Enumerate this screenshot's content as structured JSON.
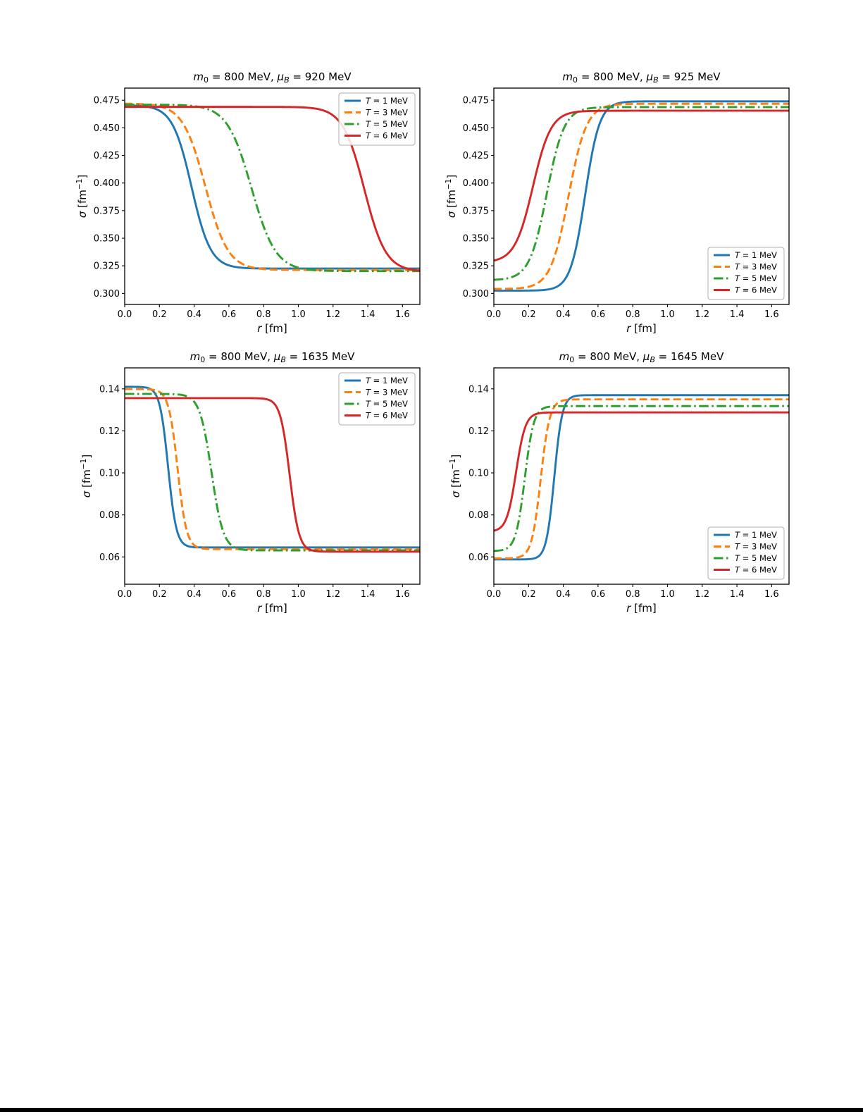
{
  "page": {
    "background_color": "#ffffff",
    "bottom_bar_color": "#000000"
  },
  "shared": {
    "x_axis_label": "r [fm]",
    "y_axis_label": "σ [fm⁻¹]",
    "legend_labels": [
      "T = 1 MeV",
      "T = 3 MeV",
      "T = 5 MeV",
      "T = 6 MeV"
    ],
    "colors": {
      "T1": "#1f77b4",
      "T3": "#ff7f0e",
      "T5": "#2ca02c",
      "T6": "#d62728"
    },
    "grid": false
  },
  "chart_data": [
    {
      "type": "line",
      "title": {
        "text": "m₀ = 800 MeV, μ_B = 920 MeV",
        "m0": "800",
        "mu_B": "920"
      },
      "xlabel": "r [fm]",
      "ylabel": "σ [fm⁻¹]",
      "xlim": [
        0.0,
        1.7
      ],
      "ylim": [
        0.29,
        0.486
      ],
      "xticks": [
        0.0,
        0.2,
        0.4,
        0.6,
        0.8,
        1.0,
        1.2,
        1.4,
        1.6
      ],
      "xtick_labels": [
        "0.0",
        "0.2",
        "0.4",
        "0.6",
        "0.8",
        "1.0",
        "1.2",
        "1.4",
        "1.6"
      ],
      "yticks": [
        0.3,
        0.325,
        0.35,
        0.375,
        0.4,
        0.425,
        0.45,
        0.475
      ],
      "ytick_labels": [
        "0.300",
        "0.325",
        "0.350",
        "0.375",
        "0.400",
        "0.425",
        "0.450",
        "0.475"
      ],
      "legend_loc": "upper-right",
      "ylabel_x": 22,
      "series": [
        {
          "name": "T = 1 MeV",
          "T": "1",
          "color": "#1f77b4",
          "linestyle": "solid",
          "profile": {
            "y_at_r0": 0.4705,
            "y_plateau": 0.3225,
            "transition_center": 0.385,
            "transition_width": 0.055
          }
        },
        {
          "name": "T = 3 MeV",
          "T": "3",
          "color": "#ff7f0e",
          "linestyle": "dashed",
          "profile": {
            "y_at_r0": 0.472,
            "y_plateau": 0.3212,
            "transition_center": 0.465,
            "transition_width": 0.065
          }
        },
        {
          "name": "T = 5 MeV",
          "T": "5",
          "color": "#2ca02c",
          "linestyle": "dashdot",
          "profile": {
            "y_at_r0": 0.471,
            "y_plateau": 0.3202,
            "transition_center": 0.73,
            "transition_width": 0.07
          }
        },
        {
          "name": "T = 6 MeV",
          "T": "6",
          "color": "#d62728",
          "linestyle": "solid",
          "profile": {
            "y_at_r0": 0.469,
            "y_plateau": 0.3198,
            "transition_center": 1.38,
            "transition_width": 0.062
          }
        }
      ]
    },
    {
      "type": "line",
      "title": {
        "text": "m₀ = 800 MeV, μ_B = 925 MeV",
        "m0": "800",
        "mu_B": "925"
      },
      "xlabel": "r [fm]",
      "ylabel": "σ [fm⁻¹]",
      "xlim": [
        0.0,
        1.7
      ],
      "ylim": [
        0.29,
        0.486
      ],
      "xticks": [
        0.0,
        0.2,
        0.4,
        0.6,
        0.8,
        1.0,
        1.2,
        1.4,
        1.6
      ],
      "xtick_labels": [
        "0.0",
        "0.2",
        "0.4",
        "0.6",
        "0.8",
        "1.0",
        "1.2",
        "1.4",
        "1.6"
      ],
      "yticks": [
        0.3,
        0.325,
        0.35,
        0.375,
        0.4,
        0.425,
        0.45,
        0.475
      ],
      "ytick_labels": [
        "0.300",
        "0.325",
        "0.350",
        "0.375",
        "0.400",
        "0.425",
        "0.450",
        "0.475"
      ],
      "legend_loc": "lower-right",
      "ylabel_x": 22,
      "series": [
        {
          "name": "T = 1 MeV",
          "T": "1",
          "color": "#1f77b4",
          "linestyle": "solid",
          "profile": {
            "y_at_r0": 0.3025,
            "y_plateau": 0.474,
            "transition_center": 0.525,
            "transition_width": 0.042
          }
        },
        {
          "name": "T = 3 MeV",
          "T": "3",
          "color": "#ff7f0e",
          "linestyle": "dashed",
          "profile": {
            "y_at_r0": 0.304,
            "y_plateau": 0.4718,
            "transition_center": 0.43,
            "transition_width": 0.052
          }
        },
        {
          "name": "T = 5 MeV",
          "T": "5",
          "color": "#2ca02c",
          "linestyle": "dashdot",
          "profile": {
            "y_at_r0": 0.312,
            "y_plateau": 0.4688,
            "transition_center": 0.305,
            "transition_width": 0.05
          }
        },
        {
          "name": "T = 6 MeV",
          "T": "6",
          "color": "#d62728",
          "linestyle": "solid",
          "profile": {
            "y_at_r0": 0.328,
            "y_plateau": 0.4655,
            "transition_center": 0.225,
            "transition_width": 0.052
          }
        }
      ]
    },
    {
      "type": "line",
      "title": {
        "text": "m₀ = 800 MeV, μ_B = 1635 MeV",
        "m0": "800",
        "mu_B": "1635"
      },
      "xlabel": "r [fm]",
      "ylabel": "σ [fm⁻¹]",
      "xlim": [
        0.0,
        1.7
      ],
      "ylim": [
        0.047,
        0.15
      ],
      "xticks": [
        0.0,
        0.2,
        0.4,
        0.6,
        0.8,
        1.0,
        1.2,
        1.4,
        1.6
      ],
      "xtick_labels": [
        "0.0",
        "0.2",
        "0.4",
        "0.6",
        "0.8",
        "1.0",
        "1.2",
        "1.4",
        "1.6"
      ],
      "yticks": [
        0.06,
        0.08,
        0.1,
        0.12,
        0.14
      ],
      "ytick_labels": [
        "0.06",
        "0.08",
        "0.10",
        "0.12",
        "0.14"
      ],
      "legend_loc": "upper-right",
      "ylabel_x": 28,
      "series": [
        {
          "name": "T = 1 MeV",
          "T": "1",
          "color": "#1f77b4",
          "linestyle": "solid",
          "profile": {
            "y_at_r0": 0.141,
            "y_plateau": 0.0645,
            "transition_center": 0.25,
            "transition_width": 0.024
          }
        },
        {
          "name": "T = 3 MeV",
          "T": "3",
          "color": "#ff7f0e",
          "linestyle": "dashed",
          "profile": {
            "y_at_r0": 0.1399,
            "y_plateau": 0.0637,
            "transition_center": 0.305,
            "transition_width": 0.026
          }
        },
        {
          "name": "T = 5 MeV",
          "T": "5",
          "color": "#2ca02c",
          "linestyle": "dashdot",
          "profile": {
            "y_at_r0": 0.1376,
            "y_plateau": 0.0631,
            "transition_center": 0.5,
            "transition_width": 0.034
          }
        },
        {
          "name": "T = 6 MeV",
          "T": "6",
          "color": "#d62728",
          "linestyle": "solid",
          "profile": {
            "y_at_r0": 0.1356,
            "y_plateau": 0.0625,
            "transition_center": 0.95,
            "transition_width": 0.027
          }
        }
      ]
    },
    {
      "type": "line",
      "title": {
        "text": "m₀ = 800 MeV, μ_B = 1645 MeV",
        "m0": "800",
        "mu_B": "1645"
      },
      "xlabel": "r [fm]",
      "ylabel": "σ [fm⁻¹]",
      "xlim": [
        0.0,
        1.7
      ],
      "ylim": [
        0.047,
        0.15
      ],
      "xticks": [
        0.0,
        0.2,
        0.4,
        0.6,
        0.8,
        1.0,
        1.2,
        1.4,
        1.6
      ],
      "xtick_labels": [
        "0.0",
        "0.2",
        "0.4",
        "0.6",
        "0.8",
        "1.0",
        "1.2",
        "1.4",
        "1.6"
      ],
      "yticks": [
        0.06,
        0.08,
        0.1,
        0.12,
        0.14
      ],
      "ytick_labels": [
        "0.06",
        "0.08",
        "0.10",
        "0.12",
        "0.14"
      ],
      "legend_loc": "lower-right",
      "ylabel_x": 28,
      "series": [
        {
          "name": "T = 1 MeV",
          "T": "1",
          "color": "#1f77b4",
          "linestyle": "solid",
          "profile": {
            "y_at_r0": 0.0588,
            "y_plateau": 0.137,
            "transition_center": 0.348,
            "transition_width": 0.023
          }
        },
        {
          "name": "T = 3 MeV",
          "T": "3",
          "color": "#ff7f0e",
          "linestyle": "dashed",
          "profile": {
            "y_at_r0": 0.0593,
            "y_plateau": 0.135,
            "transition_center": 0.27,
            "transition_width": 0.026
          }
        },
        {
          "name": "T = 5 MeV",
          "T": "5",
          "color": "#2ca02c",
          "linestyle": "dashdot",
          "profile": {
            "y_at_r0": 0.0628,
            "y_plateau": 0.1318,
            "transition_center": 0.178,
            "transition_width": 0.026
          }
        },
        {
          "name": "T = 6 MeV",
          "T": "6",
          "color": "#d62728",
          "linestyle": "solid",
          "profile": {
            "y_at_r0": 0.072,
            "y_plateau": 0.1288,
            "transition_center": 0.128,
            "transition_width": 0.027
          }
        }
      ]
    }
  ]
}
